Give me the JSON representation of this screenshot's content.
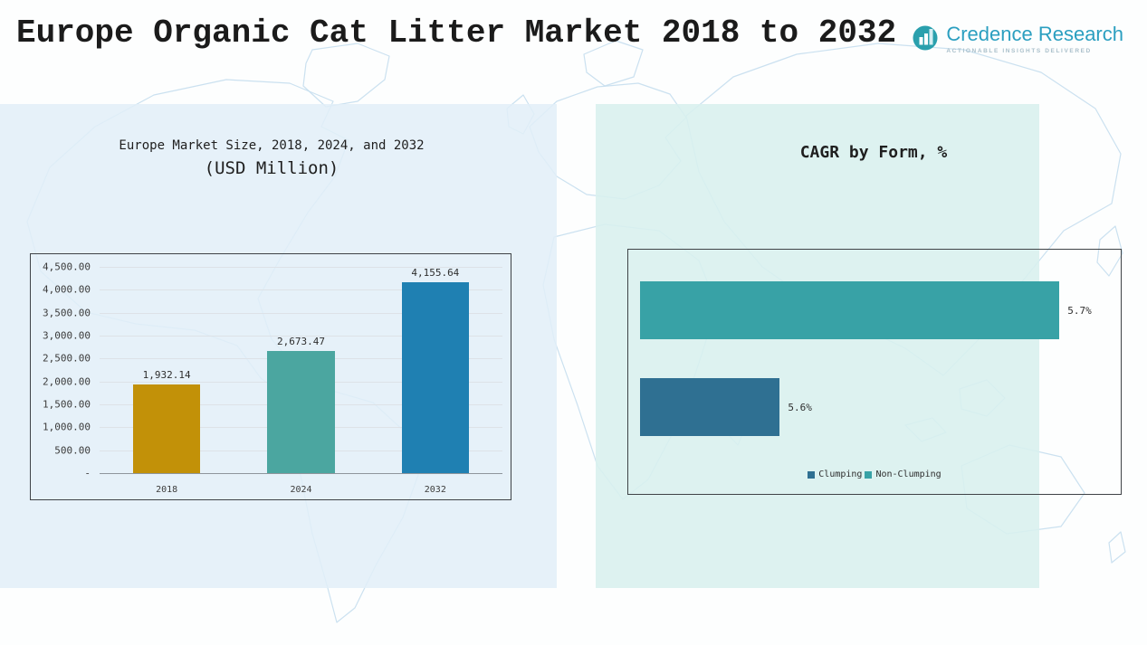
{
  "page": {
    "title": "Europe Organic Cat Litter Market 2018 to 2032"
  },
  "logo": {
    "name": "Credence Research",
    "tagline": "Actionable Insights Delivered"
  },
  "chart_data": [
    {
      "type": "bar",
      "title": "Europe Market Size, 2018, 2024, and 2032",
      "subtitle": "(USD Million)",
      "categories": [
        "2018",
        "2024",
        "2032"
      ],
      "values": [
        1932.14,
        2673.47,
        4155.64
      ],
      "value_labels": [
        "1,932.14",
        "2,673.47",
        "4,155.64"
      ],
      "bar_colors": [
        "#C29108",
        "#4BA6A0",
        "#1F80B2"
      ],
      "xlabel": "",
      "ylabel": "",
      "ylim": [
        0,
        4500
      ],
      "ytick_labels": [
        "4,500.00",
        "4,000.00",
        "3,500.00",
        "3,000.00",
        "2,500.00",
        "2,000.00",
        "1,500.00",
        "1,000.00",
        "500.00",
        "-"
      ],
      "grid": true,
      "legend_position": "none"
    },
    {
      "type": "bar",
      "orientation": "horizontal",
      "title": "CAGR by Form, %",
      "categories": [
        "Non-Clumping",
        "Clumping"
      ],
      "values": [
        5.7,
        5.6
      ],
      "value_labels": [
        "5.7%",
        "5.6%"
      ],
      "bar_colors": [
        "#38A2A6",
        "#2F7092"
      ],
      "xlim": [
        5.55,
        5.72
      ],
      "grid": false,
      "legend_position": "bottom",
      "legend": [
        {
          "label": "Clumping",
          "color": "#2F7092"
        },
        {
          "label": "Non-Clumping",
          "color": "#38A2A6"
        }
      ]
    }
  ]
}
